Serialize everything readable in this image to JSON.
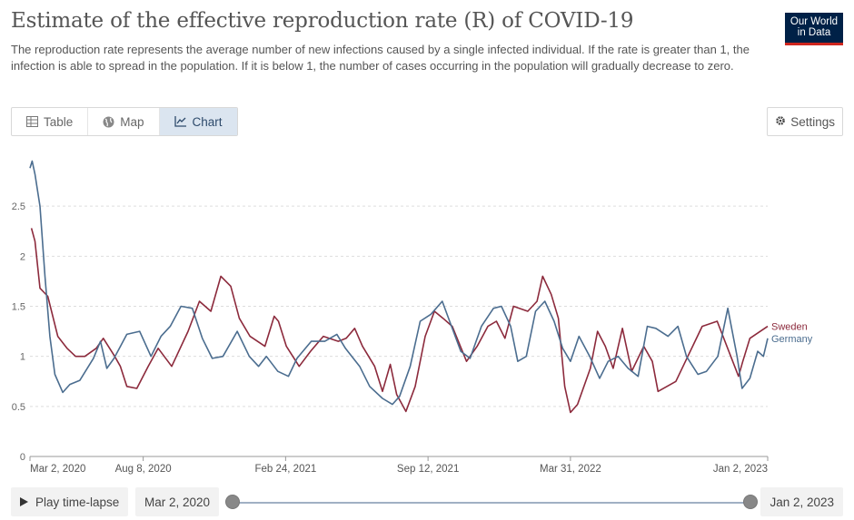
{
  "header": {
    "title": "Estimate of the effective reproduction rate (R) of COVID-19",
    "subtitle": "The reproduction rate represents the average number of new infections caused by a single infected individual. If the rate is greater than 1, the infection is able to spread in the population. If it is below 1, the number of cases occurring in the population will gradually decrease to zero.",
    "logo_line1": "Our World",
    "logo_line2": "in Data"
  },
  "tabs": [
    {
      "label": "Table",
      "icon": "table-icon"
    },
    {
      "label": "Map",
      "icon": "globe-icon"
    },
    {
      "label": "Chart",
      "icon": "line-chart-icon",
      "active": true
    }
  ],
  "settings_label": "Settings",
  "footer": {
    "play_label": "Play time-lapse",
    "start_date": "Mar 2, 2020",
    "end_date": "Jan 2, 2023"
  },
  "colors": {
    "sweden": "#8c2a3c",
    "germany": "#4b6d8f",
    "grid": "#dddddd",
    "accent_active_tab": "#dbe5f0"
  },
  "chart_data": {
    "type": "line",
    "x_unit": "date",
    "xlim": [
      "2020-03-02",
      "2023-01-02"
    ],
    "ylim": [
      0,
      3
    ],
    "yticks": [
      0,
      0.5,
      1,
      1.5,
      2,
      2.5
    ],
    "ytick_labels": [
      "0",
      "0.5",
      "1",
      "1.5",
      "2",
      "2.5"
    ],
    "xticks": [
      "2020-03-02",
      "2020-08-08",
      "2021-02-24",
      "2021-09-12",
      "2022-03-31",
      "2023-01-02"
    ],
    "xtick_labels": [
      "Mar 2, 2020",
      "Aug 8, 2020",
      "Feb 24, 2021",
      "Sep 12, 2021",
      "Mar 31, 2022",
      "Jan 2, 2023"
    ],
    "grid": "horizontal dashed",
    "legend": "right, end of lines",
    "series": [
      {
        "name": "Sweden",
        "color": "#8c2a3c",
        "points": [
          [
            "2020-03-04",
            2.28
          ],
          [
            "2020-03-09",
            2.15
          ],
          [
            "2020-03-16",
            1.68
          ],
          [
            "2020-03-27",
            1.6
          ],
          [
            "2020-04-10",
            1.2
          ],
          [
            "2020-04-23",
            1.08
          ],
          [
            "2020-05-05",
            1.0
          ],
          [
            "2020-05-18",
            1.0
          ],
          [
            "2020-06-03",
            1.08
          ],
          [
            "2020-06-13",
            1.18
          ],
          [
            "2020-06-29",
            1.0
          ],
          [
            "2020-07-07",
            0.9
          ],
          [
            "2020-07-16",
            0.7
          ],
          [
            "2020-07-30",
            0.68
          ],
          [
            "2020-08-15",
            0.9
          ],
          [
            "2020-08-29",
            1.08
          ],
          [
            "2020-09-17",
            0.9
          ],
          [
            "2020-10-10",
            1.25
          ],
          [
            "2020-10-26",
            1.55
          ],
          [
            "2020-11-11",
            1.45
          ],
          [
            "2020-11-25",
            1.8
          ],
          [
            "2020-12-09",
            1.7
          ],
          [
            "2020-12-21",
            1.38
          ],
          [
            "2021-01-05",
            1.2
          ],
          [
            "2021-01-26",
            1.1
          ],
          [
            "2021-02-08",
            1.4
          ],
          [
            "2021-02-14",
            1.35
          ],
          [
            "2021-02-25",
            1.1
          ],
          [
            "2021-03-15",
            0.9
          ],
          [
            "2021-03-31",
            1.05
          ],
          [
            "2021-04-18",
            1.2
          ],
          [
            "2021-05-09",
            1.15
          ],
          [
            "2021-05-20",
            1.18
          ],
          [
            "2021-06-01",
            1.28
          ],
          [
            "2021-06-12",
            1.1
          ],
          [
            "2021-06-29",
            0.9
          ],
          [
            "2021-07-10",
            0.65
          ],
          [
            "2021-07-21",
            0.92
          ],
          [
            "2021-07-30",
            0.62
          ],
          [
            "2021-08-12",
            0.45
          ],
          [
            "2021-08-25",
            0.7
          ],
          [
            "2021-09-08",
            1.2
          ],
          [
            "2021-09-21",
            1.45
          ],
          [
            "2021-10-03",
            1.38
          ],
          [
            "2021-10-16",
            1.3
          ],
          [
            "2021-11-05",
            0.95
          ],
          [
            "2021-11-20",
            1.1
          ],
          [
            "2021-12-05",
            1.3
          ],
          [
            "2021-12-17",
            1.35
          ],
          [
            "2021-12-29",
            1.18
          ],
          [
            "2022-01-10",
            1.5
          ],
          [
            "2022-01-30",
            1.45
          ],
          [
            "2022-02-12",
            1.55
          ],
          [
            "2022-02-20",
            1.8
          ],
          [
            "2022-03-04",
            1.62
          ],
          [
            "2022-03-14",
            1.38
          ],
          [
            "2022-03-23",
            0.7
          ],
          [
            "2022-03-31",
            0.44
          ],
          [
            "2022-04-10",
            0.52
          ],
          [
            "2022-04-28",
            0.88
          ],
          [
            "2022-05-08",
            1.25
          ],
          [
            "2022-05-19",
            1.1
          ],
          [
            "2022-05-30",
            0.88
          ],
          [
            "2022-06-12",
            1.28
          ],
          [
            "2022-06-25",
            0.85
          ],
          [
            "2022-07-12",
            1.1
          ],
          [
            "2022-07-24",
            0.95
          ],
          [
            "2022-08-01",
            0.65
          ],
          [
            "2022-08-26",
            0.75
          ],
          [
            "2022-10-02",
            1.3
          ],
          [
            "2022-10-23",
            1.35
          ],
          [
            "2022-11-22",
            0.8
          ],
          [
            "2022-11-28",
            0.95
          ],
          [
            "2022-12-08",
            1.18
          ],
          [
            "2023-01-02",
            1.3
          ]
        ]
      },
      {
        "name": "Germany",
        "color": "#4b6d8f",
        "points": [
          [
            "2020-03-02",
            2.88
          ],
          [
            "2020-03-05",
            2.95
          ],
          [
            "2020-03-09",
            2.82
          ],
          [
            "2020-03-16",
            2.5
          ],
          [
            "2020-03-23",
            1.8
          ],
          [
            "2020-03-30",
            1.2
          ],
          [
            "2020-04-06",
            0.82
          ],
          [
            "2020-04-17",
            0.64
          ],
          [
            "2020-04-27",
            0.72
          ],
          [
            "2020-05-11",
            0.76
          ],
          [
            "2020-05-30",
            0.98
          ],
          [
            "2020-06-09",
            1.15
          ],
          [
            "2020-06-18",
            0.88
          ],
          [
            "2020-06-28",
            0.98
          ],
          [
            "2020-07-16",
            1.22
          ],
          [
            "2020-08-03",
            1.25
          ],
          [
            "2020-08-19",
            1.0
          ],
          [
            "2020-09-02",
            1.2
          ],
          [
            "2020-09-15",
            1.3
          ],
          [
            "2020-09-30",
            1.5
          ],
          [
            "2020-10-16",
            1.48
          ],
          [
            "2020-10-30",
            1.18
          ],
          [
            "2020-11-13",
            0.98
          ],
          [
            "2020-11-28",
            1.0
          ],
          [
            "2020-12-18",
            1.25
          ],
          [
            "2021-01-04",
            1.0
          ],
          [
            "2021-01-17",
            0.9
          ],
          [
            "2021-01-28",
            1.0
          ],
          [
            "2021-02-13",
            0.85
          ],
          [
            "2021-02-28",
            0.8
          ],
          [
            "2021-03-12",
            0.98
          ],
          [
            "2021-04-01",
            1.15
          ],
          [
            "2021-04-20",
            1.15
          ],
          [
            "2021-05-07",
            1.22
          ],
          [
            "2021-05-19",
            1.08
          ],
          [
            "2021-06-08",
            0.9
          ],
          [
            "2021-06-22",
            0.7
          ],
          [
            "2021-07-10",
            0.58
          ],
          [
            "2021-07-24",
            0.52
          ],
          [
            "2021-08-03",
            0.6
          ],
          [
            "2021-08-18",
            0.9
          ],
          [
            "2021-09-01",
            1.35
          ],
          [
            "2021-09-16",
            1.42
          ],
          [
            "2021-10-02",
            1.55
          ],
          [
            "2021-10-15",
            1.3
          ],
          [
            "2021-10-28",
            1.05
          ],
          [
            "2021-11-10",
            0.98
          ],
          [
            "2021-11-26",
            1.3
          ],
          [
            "2021-12-13",
            1.48
          ],
          [
            "2021-12-24",
            1.5
          ],
          [
            "2022-01-06",
            1.3
          ],
          [
            "2022-01-16",
            0.95
          ],
          [
            "2022-01-28",
            1.0
          ],
          [
            "2022-02-10",
            1.45
          ],
          [
            "2022-02-23",
            1.55
          ],
          [
            "2022-03-08",
            1.35
          ],
          [
            "2022-03-20",
            1.08
          ],
          [
            "2022-03-31",
            0.95
          ],
          [
            "2022-04-12",
            1.2
          ],
          [
            "2022-04-27",
            1.0
          ],
          [
            "2022-05-11",
            0.78
          ],
          [
            "2022-05-23",
            0.95
          ],
          [
            "2022-06-06",
            1.0
          ],
          [
            "2022-06-20",
            0.88
          ],
          [
            "2022-07-04",
            0.8
          ],
          [
            "2022-07-17",
            1.3
          ],
          [
            "2022-07-29",
            1.28
          ],
          [
            "2022-08-15",
            1.2
          ],
          [
            "2022-08-29",
            1.3
          ],
          [
            "2022-09-10",
            1.0
          ],
          [
            "2022-09-26",
            0.82
          ],
          [
            "2022-10-08",
            0.85
          ],
          [
            "2022-10-24",
            1.0
          ],
          [
            "2022-11-07",
            1.48
          ],
          [
            "2022-11-20",
            1.0
          ],
          [
            "2022-11-27",
            0.68
          ],
          [
            "2022-12-08",
            0.78
          ],
          [
            "2022-12-19",
            1.05
          ],
          [
            "2022-12-27",
            1.0
          ],
          [
            "2023-01-02",
            1.18
          ]
        ]
      }
    ]
  }
}
